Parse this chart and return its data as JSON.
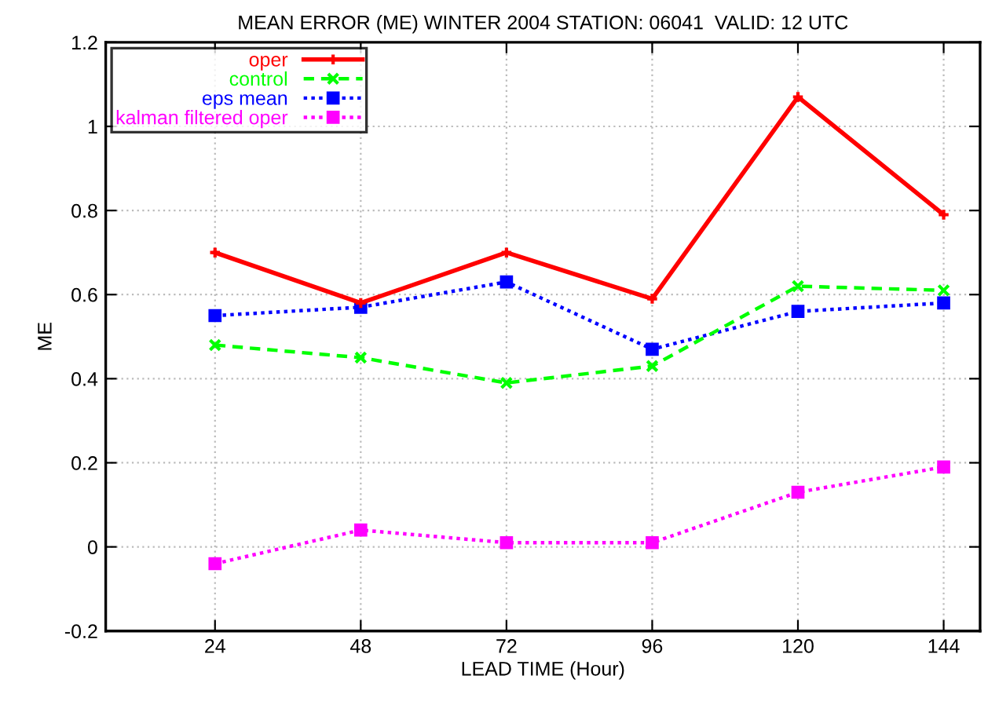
{
  "chart_data": {
    "type": "line",
    "title": "MEAN ERROR (ME) WINTER 2004 STATION: 06041  VALID: 12 UTC",
    "xlabel": "LEAD TIME (Hour)",
    "ylabel": "ME",
    "x": [
      24,
      48,
      72,
      96,
      120,
      144
    ],
    "series": [
      {
        "name": "oper",
        "color": "#ff0000",
        "values": [
          0.7,
          0.58,
          0.7,
          0.59,
          1.07,
          0.79
        ],
        "marker": "plus",
        "line_style": "solid"
      },
      {
        "name": "control",
        "color": "#00ff00",
        "values": [
          0.48,
          0.45,
          0.39,
          0.43,
          0.62,
          0.61
        ],
        "marker": "cross",
        "line_style": "dashed"
      },
      {
        "name": "eps mean",
        "color": "#0000ff",
        "values": [
          0.55,
          0.57,
          0.63,
          0.47,
          0.56,
          0.58
        ],
        "marker": "square",
        "line_style": "dotted"
      },
      {
        "name": "kalman filtered oper",
        "color": "#ff00ff",
        "values": [
          -0.04,
          0.04,
          0.01,
          0.01,
          0.13,
          0.19
        ],
        "marker": "square",
        "line_style": "dotted"
      }
    ],
    "xlim": [
      6,
      150
    ],
    "xticks": [
      24,
      48,
      72,
      96,
      120,
      144
    ],
    "ylim": [
      -0.2,
      1.2
    ],
    "yticks": [
      -0.2,
      0,
      0.2,
      0.4,
      0.6,
      0.8,
      1,
      1.2
    ],
    "grid": true,
    "legend": "top left"
  }
}
